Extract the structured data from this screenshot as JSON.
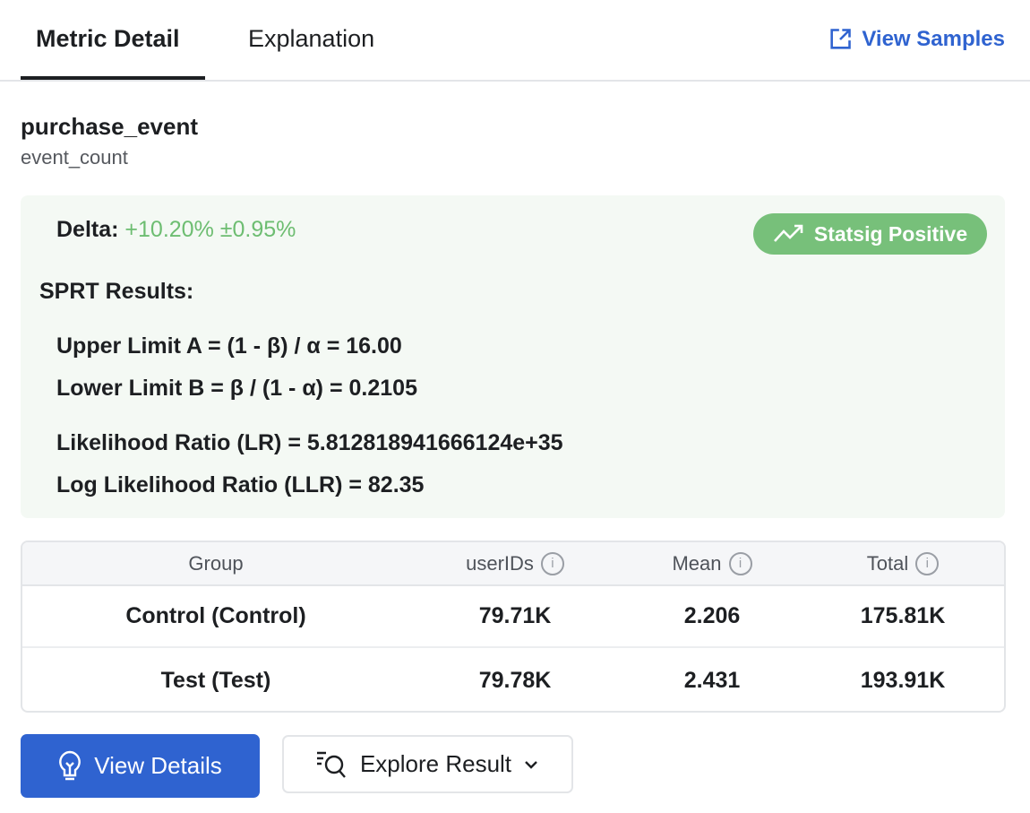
{
  "tabs": [
    {
      "label": "Metric Detail",
      "active": true
    },
    {
      "label": "Explanation",
      "active": false
    }
  ],
  "view_samples": {
    "label": "View Samples",
    "icon": "external-link-icon"
  },
  "metric": {
    "name": "purchase_event",
    "type": "event_count"
  },
  "result": {
    "delta_label": "Delta:",
    "delta_value": "+10.20% ±0.95%",
    "badge": {
      "label": "Statsig Positive",
      "icon": "trending-up-icon",
      "color": "#77c07a"
    },
    "sprt_title": "SPRT Results:",
    "lines": [
      "Upper Limit A = (1 - β) / α = 16.00",
      "Lower Limit B = β / (1 - α) = 0.2105",
      "Likelihood Ratio (LR) = 5.812818941666124e+35",
      "Log Likelihood Ratio (LLR) = 82.35"
    ]
  },
  "table": {
    "headers": [
      "Group",
      "userIDs",
      "Mean",
      "Total"
    ],
    "rows": [
      [
        "Control (Control)",
        "79.71K",
        "2.206",
        "175.81K"
      ],
      [
        "Test (Test)",
        "79.78K",
        "2.431",
        "193.91K"
      ]
    ]
  },
  "buttons": {
    "view_details": "View Details",
    "explore": "Explore Result"
  },
  "colors": {
    "accent": "#2f63d0",
    "positive": "#6dbd71"
  }
}
